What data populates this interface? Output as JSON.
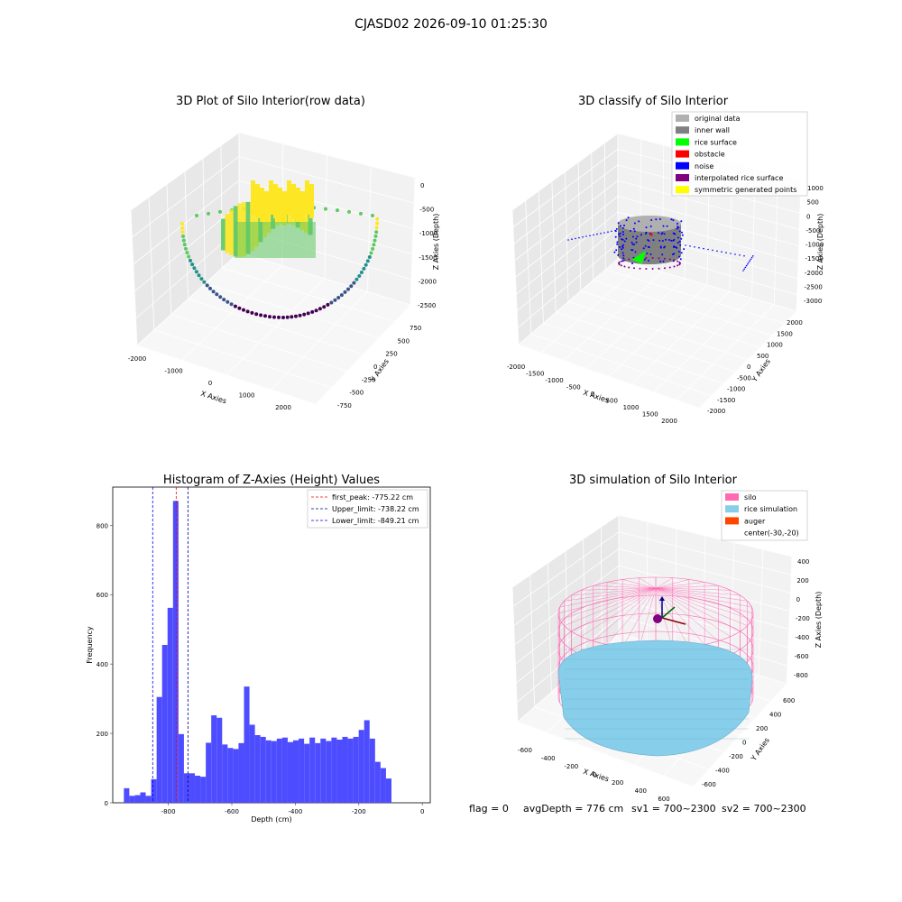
{
  "figure": {
    "suptitle": "CJASD02 2026-09-10 01:25:30"
  },
  "chart_data": [
    {
      "type": "scatter",
      "title": "3D Plot of Silo Interior(row data)",
      "xlabel": "X Axies",
      "ylabel": "Y Axies",
      "zlabel": "Z Axies (Depth)",
      "x_ticks": [
        "-2000",
        "-1000",
        "0",
        "1000",
        "2000"
      ],
      "y_ticks": [
        "750",
        "500",
        "250",
        "0",
        "-250",
        "-500",
        "-750"
      ],
      "z_ticks": [
        "0",
        "-500",
        "-1000",
        "-1500",
        "-2000",
        "-2500"
      ],
      "colormap": [
        "#440154",
        "#3b528b",
        "#21918c",
        "#5ec962",
        "#fde725"
      ]
    },
    {
      "type": "scatter",
      "title": "3D classify of Silo Interior",
      "xlabel": "X Axies",
      "ylabel": "Y Axies",
      "zlabel": "Z Axies (Depth)",
      "x_ticks": [
        "-2000",
        "-1500",
        "-1000",
        "-500",
        "0",
        "500",
        "1000",
        "1500",
        "2000"
      ],
      "y_ticks": [
        "2000",
        "1500",
        "1000",
        "500",
        "0",
        "-500",
        "-1000",
        "-1500",
        "-2000"
      ],
      "z_ticks": [
        "1000",
        "500",
        "0",
        "-500",
        "-1000",
        "-1500",
        "-2000",
        "-2500",
        "-3000"
      ],
      "legend": [
        {
          "label": "original data",
          "color": "#b0b0b0"
        },
        {
          "label": "inner wall",
          "color": "#808080"
        },
        {
          "label": "rice surface",
          "color": "#00ff00"
        },
        {
          "label": "obstacle",
          "color": "#ff0000"
        },
        {
          "label": "noise",
          "color": "#0000ff"
        },
        {
          "label": "interpolated rice surface",
          "color": "#800080"
        },
        {
          "label": "symmetric generated points",
          "color": "#ffff00"
        }
      ]
    },
    {
      "type": "bar",
      "title": "Histogram of Z-Axies (Height) Values",
      "xlabel": "Depth (cm)",
      "ylabel": "Frequency",
      "xlim": [
        -975,
        25
      ],
      "ylim": [
        0,
        910
      ],
      "x_ticks": [
        -800,
        -600,
        -400,
        -200,
        0
      ],
      "y_ticks": [
        0,
        200,
        400,
        600,
        800
      ],
      "bar_color": "#4d4dff",
      "bin_width": 17.2,
      "bin_starts": [
        -940,
        -922.8,
        -905.6,
        -888.4,
        -871.2,
        -854,
        -836.8,
        -819.6,
        -802.4,
        -785.2,
        -768,
        -750.8,
        -733.6,
        -716.4,
        -699.2,
        -682,
        -664.8,
        -647.6,
        -630.4,
        -613.2,
        -596,
        -578.8,
        -561.6,
        -544.4,
        -527.2,
        -510,
        -492.8,
        -475.6,
        -458.4,
        -441.2,
        -424,
        -406.8,
        -389.6,
        -372.4,
        -355.2,
        -338,
        -320.8,
        -303.6,
        -286.4,
        -269.2,
        -252,
        -234.8,
        -217.6,
        -200.4,
        -183.2,
        -166,
        -148.8,
        -131.6,
        -114.4,
        -97.2,
        -80,
        -62.8,
        -45.6,
        -28.4
      ],
      "values": [
        42,
        20,
        22,
        30,
        20,
        68,
        305,
        455,
        562,
        870,
        198,
        85,
        85,
        78,
        75,
        173,
        252,
        245,
        168,
        158,
        155,
        172,
        335,
        225,
        195,
        190,
        180,
        178,
        185,
        188,
        175,
        180,
        185,
        170,
        188,
        172,
        185,
        178,
        188,
        182,
        190,
        185,
        190,
        210,
        238,
        185,
        118,
        100,
        70,
        0,
        0,
        0,
        0,
        0
      ],
      "vlines": [
        {
          "label": "first_peak: -775.22 cm",
          "x": -775.22,
          "color": "#ff0000"
        },
        {
          "label": "Upper_limit: -738.22 cm",
          "x": -738.22,
          "color": "#00008b"
        },
        {
          "label": "Lower_limit: -849.21 cm",
          "x": -849.21,
          "color": "#0000ff"
        }
      ]
    },
    {
      "type": "scatter",
      "title": "3D simulation of Silo Interior",
      "xlabel": "X Axies",
      "ylabel": "Y Axies",
      "zlabel": "Z Axies (Depth)",
      "x_ticks": [
        "-600",
        "-400",
        "-200",
        "0",
        "200",
        "400",
        "600"
      ],
      "y_ticks": [
        "600",
        "400",
        "200",
        "0",
        "-200",
        "-400",
        "-600"
      ],
      "z_ticks": [
        "400",
        "200",
        "0",
        "-200",
        "-400",
        "-600",
        "-800"
      ],
      "legend": [
        {
          "label": "silo",
          "color": "#ff69b4"
        },
        {
          "label": "rice simulation",
          "color": "#87ceeb"
        },
        {
          "label": "auger",
          "color": "#ff4500"
        },
        {
          "label": "center(-30,-20)",
          "color": "#ffffff"
        }
      ]
    }
  ],
  "status": {
    "flag": "flag = 0",
    "avg_depth": "avgDepth = 776 cm",
    "sv1": "sv1 = 700~2300",
    "sv2": "sv2 = 700~2300"
  }
}
